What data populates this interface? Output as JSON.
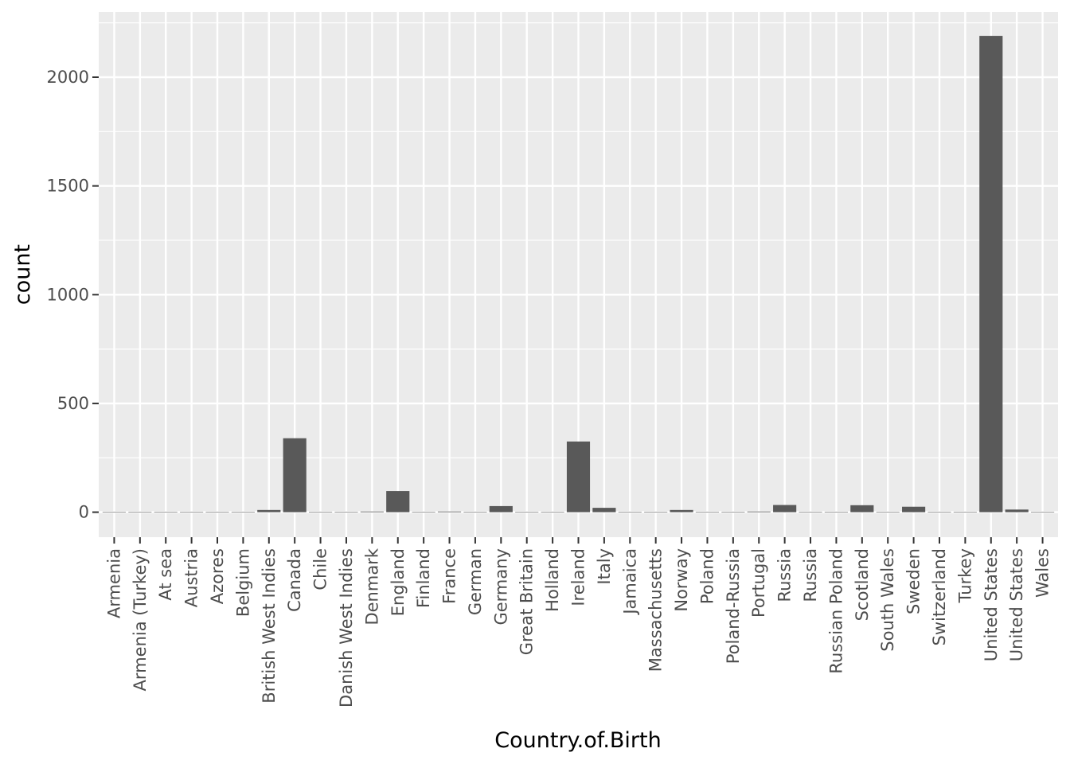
{
  "chart_data": {
    "type": "bar",
    "xlabel": "Country.of.Birth",
    "ylabel": "count",
    "categories": [
      "Armenia",
      "Armenia (Turkey)",
      "At sea",
      "Austria",
      "Azores",
      "Belgium",
      "British West Indies",
      "Canada",
      "Chile",
      "Danish West Indies",
      "Denmark",
      "England",
      "Finland",
      "France",
      "German",
      "Germany",
      "Great Britain",
      "Holland",
      "Ireland",
      "Italy",
      "Jamaica",
      "Massachusetts",
      "Norway",
      "Poland",
      "Poland-Russia",
      "Portugal",
      "Russia",
      "Russia ",
      "Russian Poland",
      "Scotland",
      "South Wales",
      "Sweden",
      "Switzerland",
      "Turkey",
      "United States",
      "United States ",
      "Wales"
    ],
    "values": [
      1,
      1,
      1,
      1,
      1,
      1,
      10,
      340,
      1,
      1,
      3,
      97,
      1,
      3,
      1,
      28,
      1,
      1,
      325,
      20,
      1,
      1,
      10,
      1,
      1,
      3,
      33,
      1,
      1,
      32,
      1,
      25,
      1,
      1,
      2190,
      12,
      1
    ],
    "ylim": [
      -115,
      2300
    ],
    "yticks": [
      0,
      500,
      1000,
      1500,
      2000
    ],
    "grid": true,
    "colors": {
      "panel": "#ebebeb",
      "grid": "#ffffff",
      "bar": "#595959",
      "tick": "#333333"
    }
  }
}
